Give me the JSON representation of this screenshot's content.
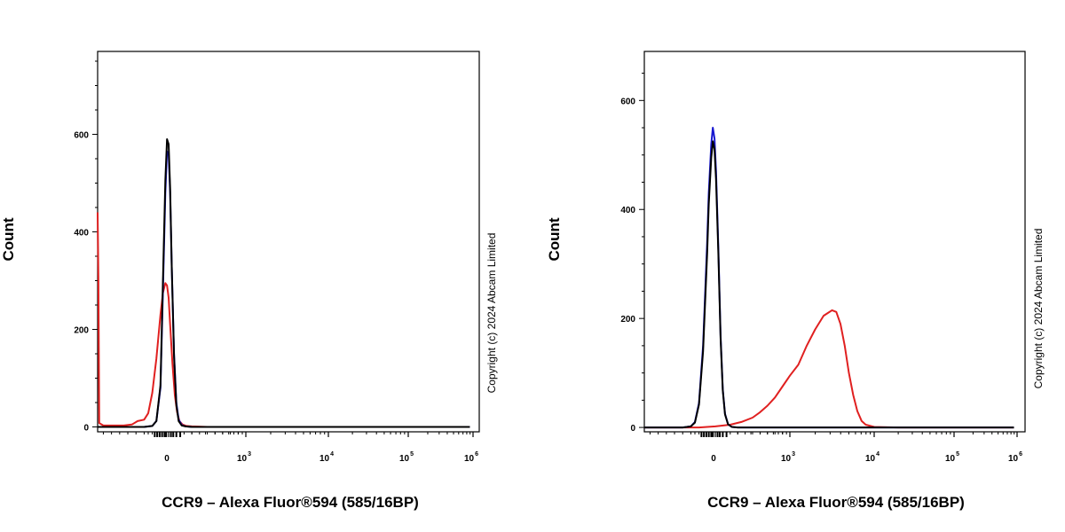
{
  "chart_data": [
    {
      "type": "line",
      "panel": "left",
      "ylabel": "Count",
      "xlabel": "CCR9 – Alexa Fluor®594 (585/16BP)",
      "copyright": "Copyright (c) 2024 Abcam Limited",
      "ylim": [
        -10,
        770
      ],
      "yticks": [
        {
          "value": 0,
          "label": "0"
        },
        {
          "value": 200,
          "label": "200"
        },
        {
          "value": 400,
          "label": "400"
        },
        {
          "value": 600,
          "label": "600"
        }
      ],
      "xticks": [
        {
          "pos": 0.0,
          "base": "0",
          "exp": ""
        },
        {
          "pos": 1.0,
          "base": "10",
          "exp": "3"
        },
        {
          "pos": 2.0,
          "base": "10",
          "exp": "4"
        },
        {
          "pos": 3.0,
          "base": "10",
          "exp": "5"
        },
        {
          "pos": 4.0,
          "base": "10",
          "exp": "6"
        }
      ],
      "xrange": [
        -0.87,
        3.95
      ],
      "series": [
        {
          "name": "red",
          "color": "#e02020",
          "x": [
            -0.87,
            -0.86,
            -0.85,
            -0.8,
            -0.7,
            -0.55,
            -0.45,
            -0.38,
            -0.3,
            -0.25,
            -0.2,
            -0.15,
            -0.1,
            -0.07,
            -0.04,
            -0.02,
            0.0,
            0.02,
            0.05,
            0.08,
            0.11,
            0.14,
            0.18,
            0.23,
            0.3,
            0.5,
            1.5,
            2.5,
            3.95
          ],
          "y": [
            440,
            300,
            8,
            3,
            3,
            3,
            5,
            12,
            15,
            28,
            70,
            140,
            230,
            275,
            295,
            290,
            265,
            210,
            130,
            65,
            30,
            12,
            5,
            2,
            1,
            0,
            0,
            0,
            0
          ]
        },
        {
          "name": "blue",
          "color": "#1a1ad0",
          "x": [
            -0.87,
            -0.3,
            -0.2,
            -0.15,
            -0.1,
            -0.07,
            -0.04,
            -0.02,
            0.0,
            0.02,
            0.04,
            0.07,
            0.1,
            0.13,
            0.17,
            0.22,
            0.3,
            3.95
          ],
          "y": [
            0,
            0,
            2,
            12,
            80,
            280,
            480,
            565,
            560,
            480,
            330,
            150,
            50,
            15,
            4,
            1,
            0,
            0
          ]
        },
        {
          "name": "black",
          "color": "#000000",
          "x": [
            -0.87,
            -0.3,
            -0.2,
            -0.15,
            -0.1,
            -0.07,
            -0.04,
            -0.02,
            0.0,
            0.02,
            0.04,
            0.07,
            0.1,
            0.13,
            0.17,
            0.22,
            0.3,
            3.95
          ],
          "y": [
            0,
            0,
            2,
            12,
            85,
            300,
            505,
            590,
            580,
            490,
            330,
            145,
            45,
            12,
            3,
            1,
            0,
            0
          ]
        }
      ]
    },
    {
      "type": "line",
      "panel": "right",
      "ylabel": "Count",
      "xlabel": "CCR9 – Alexa Fluor®594 (585/16BP)",
      "copyright": "Copyright (c) 2024 Abcam Limited",
      "ylim": [
        -8,
        690
      ],
      "yticks": [
        {
          "value": 0,
          "label": "0"
        },
        {
          "value": 200,
          "label": "200"
        },
        {
          "value": 400,
          "label": "400"
        },
        {
          "value": 600,
          "label": "600"
        }
      ],
      "xticks": [
        {
          "pos": 0.0,
          "base": "0",
          "exp": ""
        },
        {
          "pos": 1.0,
          "base": "10",
          "exp": "3"
        },
        {
          "pos": 2.0,
          "base": "10",
          "exp": "4"
        },
        {
          "pos": 3.0,
          "base": "10",
          "exp": "5"
        },
        {
          "pos": 4.0,
          "base": "10",
          "exp": "6"
        }
      ],
      "xrange": [
        -0.87,
        3.95
      ],
      "series": [
        {
          "name": "red",
          "color": "#e02020",
          "x": [
            -0.87,
            -0.5,
            -0.2,
            0.0,
            0.2,
            0.35,
            0.5,
            0.6,
            0.7,
            0.8,
            0.9,
            1.0,
            1.1,
            1.2,
            1.3,
            1.4,
            1.45,
            1.5,
            1.55,
            1.6,
            1.65,
            1.7,
            1.75,
            1.8,
            1.85,
            1.9,
            2.0,
            2.3,
            3.95
          ],
          "y": [
            0,
            0,
            0,
            2,
            5,
            10,
            18,
            28,
            40,
            55,
            75,
            95,
            115,
            150,
            180,
            205,
            210,
            215,
            212,
            190,
            150,
            100,
            60,
            30,
            12,
            5,
            1,
            0,
            0
          ]
        },
        {
          "name": "blue",
          "color": "#1a1ad0",
          "x": [
            -0.87,
            -0.4,
            -0.3,
            -0.25,
            -0.2,
            -0.15,
            -0.1,
            -0.08,
            -0.05,
            -0.03,
            -0.01,
            0.01,
            0.04,
            0.07,
            0.1,
            0.13,
            0.17,
            0.22,
            0.3,
            3.95
          ],
          "y": [
            0,
            0,
            2,
            10,
            45,
            150,
            340,
            430,
            520,
            550,
            530,
            470,
            330,
            170,
            70,
            25,
            6,
            1,
            0,
            0
          ]
        },
        {
          "name": "black",
          "color": "#000000",
          "x": [
            -0.87,
            -0.4,
            -0.3,
            -0.25,
            -0.2,
            -0.15,
            -0.1,
            -0.08,
            -0.05,
            -0.03,
            -0.01,
            0.01,
            0.04,
            0.07,
            0.1,
            0.13,
            0.17,
            0.22,
            0.3,
            3.95
          ],
          "y": [
            0,
            0,
            2,
            9,
            42,
            140,
            320,
            410,
            495,
            525,
            510,
            455,
            320,
            165,
            68,
            24,
            6,
            1,
            0,
            0
          ]
        }
      ]
    }
  ]
}
